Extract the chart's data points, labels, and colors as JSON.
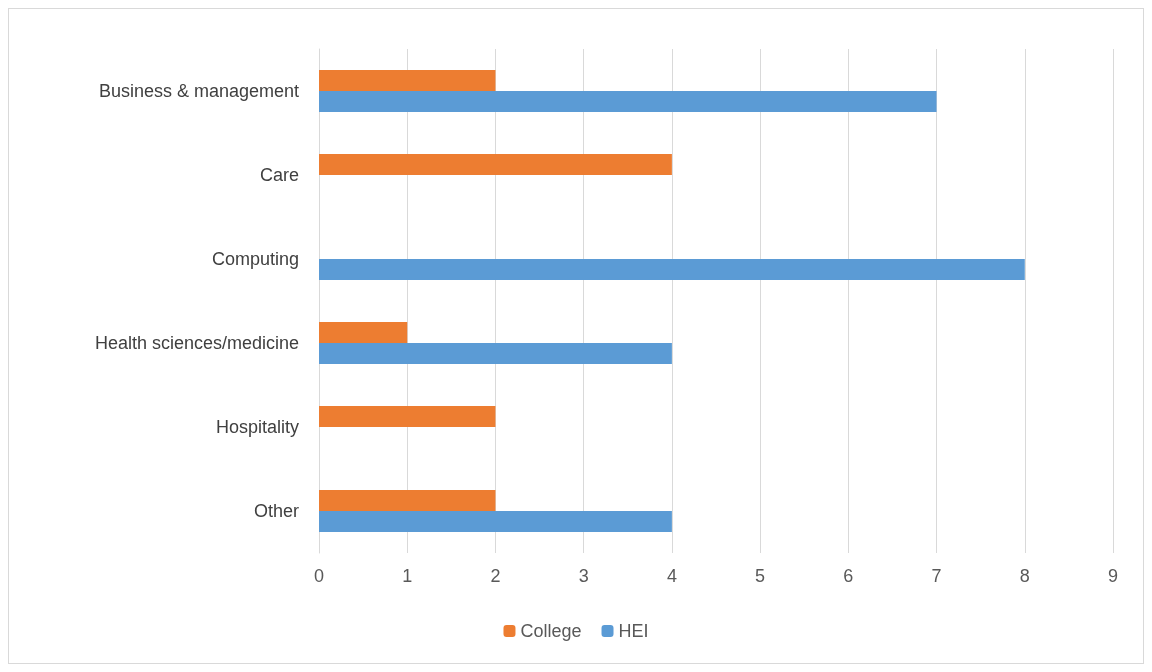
{
  "chart_data": {
    "type": "bar",
    "orientation": "horizontal",
    "categories": [
      "Business & management",
      "Care",
      "Computing",
      "Health sciences/medicine",
      "Hospitality",
      "Other"
    ],
    "series": [
      {
        "name": "College",
        "color": "#ed7d31",
        "values": [
          2,
          4,
          0,
          1,
          2,
          2
        ]
      },
      {
        "name": "HEI",
        "color": "#5b9bd5",
        "values": [
          7,
          0,
          8,
          4,
          0,
          4
        ]
      }
    ],
    "xlim": [
      0,
      9
    ],
    "xticks": [
      0,
      1,
      2,
      3,
      4,
      5,
      6,
      7,
      8,
      9
    ],
    "grid": "x",
    "legend": "bottom"
  }
}
